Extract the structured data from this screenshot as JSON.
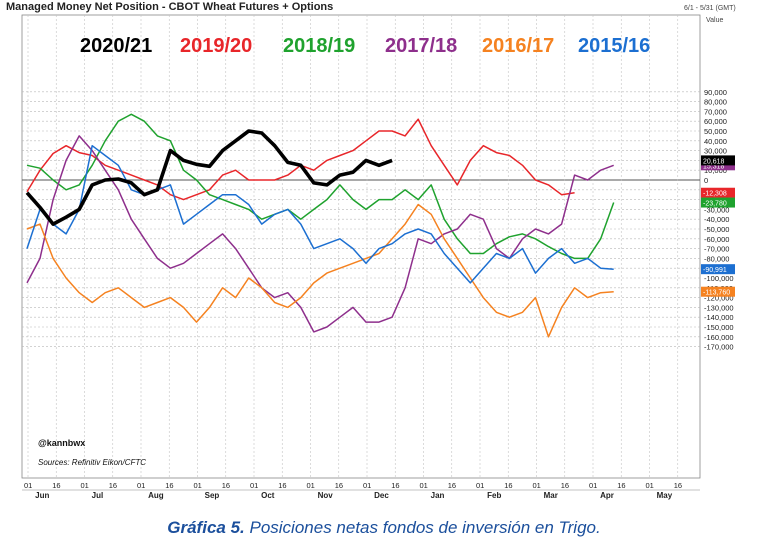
{
  "chart_data": {
    "type": "line",
    "title": "Managed Money Net Position - CBOT Wheat Futures + Options",
    "subtitle": "6/1 - 5/31 (GMT)",
    "ylabel": "Value",
    "ylim": [
      -180000,
      100000
    ],
    "yticks": [
      90000,
      80000,
      70000,
      60000,
      50000,
      40000,
      30000,
      20000,
      10000,
      0,
      -10000,
      -20000,
      -30000,
      -40000,
      -50000,
      -60000,
      -70000,
      -80000,
      -90000,
      -100000,
      -110000,
      -120000,
      -130000,
      -140000,
      -150000,
      -160000,
      -170000
    ],
    "ytick_labels": [
      "90,000",
      "80,000",
      "70,000",
      "60,000",
      "50,000",
      "40,000",
      "30,000",
      "20,000",
      "10,000",
      "0",
      "-10,000",
      "-20,000",
      "-30,000",
      "-40,000",
      "-50,000",
      "-60,000",
      "-70,000",
      "-80,000",
      "-90,000",
      "-100,000",
      "-110,000",
      "-120,000",
      "-130,000",
      "-140,000",
      "-150,000",
      "-160,000",
      "-170,000"
    ],
    "x_weeks": 52,
    "xtick_labels": [
      "01",
      "16",
      "01",
      "16",
      "01",
      "16",
      "01",
      "16",
      "01",
      "16",
      "01",
      "16",
      "01",
      "16",
      "01",
      "16",
      "01",
      "16",
      "01",
      "16",
      "01",
      "16",
      "01",
      "16"
    ],
    "month_labels": [
      "Jun",
      "Jul",
      "Aug",
      "Sep",
      "Oct",
      "Nov",
      "Dec",
      "Jan",
      "Feb",
      "Mar",
      "Apr",
      "May"
    ],
    "grid": true,
    "zero_line": true,
    "credit": "@kannbwx",
    "source": "Sources: Refinitiv Eikon/CFTC",
    "series": [
      {
        "name": "2020/21",
        "color": "#000000",
        "bold": true,
        "last_label": "20,618",
        "values": [
          -13000,
          -28000,
          -45000,
          -38000,
          -30000,
          -5000,
          0,
          1000,
          -3000,
          -15000,
          -10000,
          30000,
          20000,
          16000,
          14000,
          30000,
          40000,
          50000,
          48000,
          35000,
          18000,
          15000,
          -3000,
          -5000,
          5000,
          8000,
          20000,
          15000,
          20000
        ]
      },
      {
        "name": "2019/20",
        "color": "#e8262a",
        "bold": false,
        "last_label": "-12,308",
        "values": [
          -12000,
          10000,
          27000,
          35000,
          28000,
          25000,
          15000,
          10000,
          5000,
          0,
          -5000,
          -15000,
          -20000,
          -15000,
          -10000,
          5000,
          10000,
          0,
          0,
          0,
          5000,
          15000,
          10000,
          20000,
          25000,
          30000,
          40000,
          50000,
          50000,
          45000,
          62000,
          35000,
          15000,
          -5000,
          20000,
          35000,
          28000,
          25000,
          15000,
          0,
          -5000,
          -15000,
          -13000
        ]
      },
      {
        "name": "2018/19",
        "color": "#1fa22e",
        "bold": false,
        "last_label": "-23,780",
        "values": [
          15000,
          12000,
          0,
          -10000,
          -5000,
          15000,
          40000,
          60000,
          67000,
          60000,
          45000,
          40000,
          10000,
          0,
          -15000,
          -20000,
          -25000,
          -30000,
          -40000,
          -35000,
          -30000,
          -40000,
          -30000,
          -20000,
          -5000,
          -20000,
          -30000,
          -20000,
          -20000,
          -10000,
          -20000,
          -5000,
          -40000,
          -60000,
          -75000,
          -75000,
          -65000,
          -58000,
          -55000,
          -60000,
          -68000,
          -75000,
          -80000,
          -80000,
          -60000,
          -23000
        ]
      },
      {
        "name": "2017/18",
        "color": "#8e2f8c",
        "bold": false,
        "last_label": "15,318",
        "values": [
          -105000,
          -80000,
          -20000,
          20000,
          45000,
          30000,
          10000,
          -10000,
          -40000,
          -60000,
          -80000,
          -90000,
          -85000,
          -75000,
          -65000,
          -55000,
          -70000,
          -90000,
          -110000,
          -120000,
          -115000,
          -130000,
          -155000,
          -150000,
          -140000,
          -130000,
          -145000,
          -145000,
          -140000,
          -110000,
          -60000,
          -65000,
          -55000,
          -50000,
          -35000,
          -40000,
          -70000,
          -80000,
          -60000,
          -50000,
          -55000,
          -45000,
          5000,
          0,
          10000,
          15000
        ]
      },
      {
        "name": "2016/17",
        "color": "#f58220",
        "bold": false,
        "last_label": "-113,760",
        "values": [
          -50000,
          -45000,
          -80000,
          -100000,
          -115000,
          -125000,
          -115000,
          -110000,
          -120000,
          -130000,
          -125000,
          -120000,
          -130000,
          -145000,
          -130000,
          -110000,
          -120000,
          -100000,
          -110000,
          -125000,
          -130000,
          -120000,
          -105000,
          -95000,
          -90000,
          -85000,
          -80000,
          -75000,
          -60000,
          -45000,
          -25000,
          -35000,
          -60000,
          -80000,
          -100000,
          -120000,
          -135000,
          -140000,
          -135000,
          -120000,
          -160000,
          -130000,
          -110000,
          -120000,
          -115000,
          -114000
        ]
      },
      {
        "name": "2015/16",
        "color": "#1c6fd1",
        "bold": false,
        "last_label": "-90,991",
        "values": [
          -70000,
          -30000,
          -45000,
          -55000,
          -30000,
          35000,
          25000,
          15000,
          -10000,
          -15000,
          -10000,
          -5000,
          -45000,
          -35000,
          -25000,
          -15000,
          -15000,
          -25000,
          -45000,
          -35000,
          -30000,
          -45000,
          -70000,
          -65000,
          -60000,
          -70000,
          -85000,
          -70000,
          -65000,
          -55000,
          -50000,
          -55000,
          -75000,
          -90000,
          -105000,
          -90000,
          -75000,
          -80000,
          -70000,
          -95000,
          -80000,
          -70000,
          -85000,
          -80000,
          -90000,
          -91000
        ]
      }
    ]
  },
  "caption": {
    "label": "Gráfica 5.",
    "text": " Posiciones netas fondos de inversión en Trigo."
  }
}
